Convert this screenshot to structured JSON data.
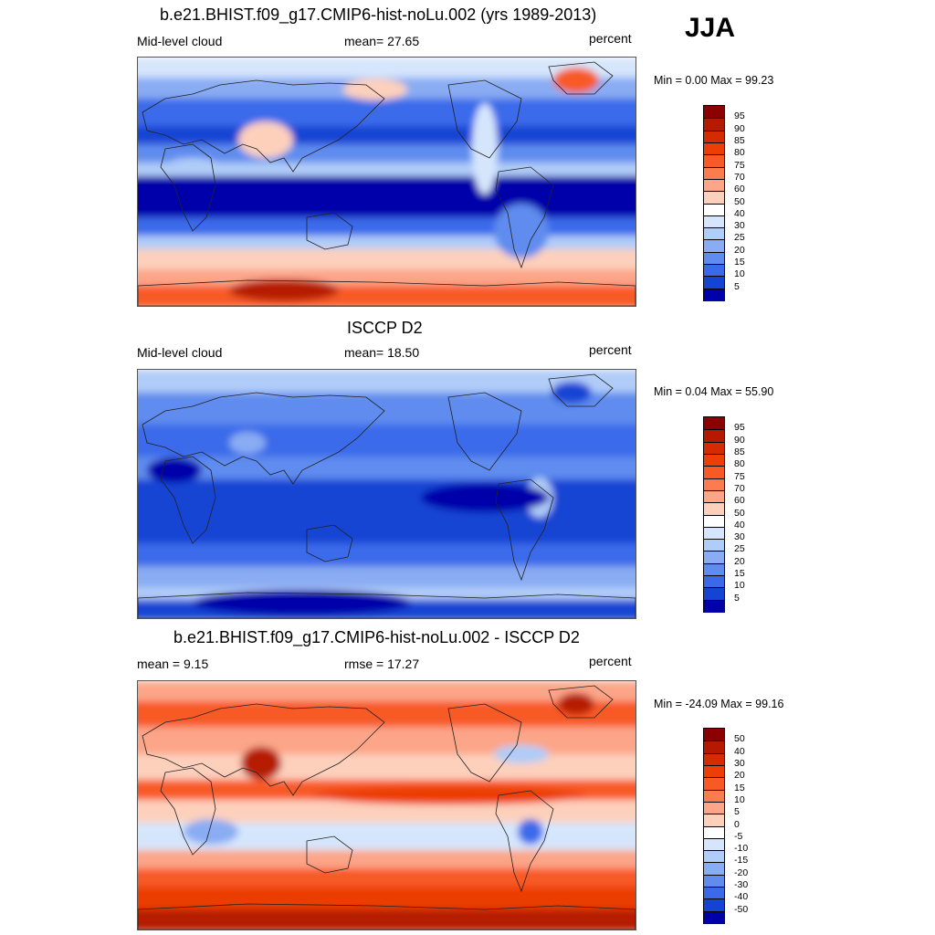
{
  "season": "JJA",
  "panels": [
    {
      "title": "b.e21.BHIST.f09_g17.CMIP6-hist-noLu.002 (yrs 1989-2013)",
      "left_label": "Mid-level cloud",
      "center_label": "mean=  27.65",
      "right_label": "percent",
      "minmax": "Min =   0.00 Max =  99.23",
      "colorbar": {
        "labels": [
          "95",
          "90",
          "85",
          "80",
          "75",
          "70",
          "60",
          "50",
          "40",
          "30",
          "25",
          "20",
          "15",
          "10",
          "5"
        ],
        "colors": [
          "#8b0000",
          "#b51a00",
          "#d42b00",
          "#ec3e06",
          "#f85a26",
          "#fb7c4f",
          "#fca588",
          "#fdd0bc",
          "#ffffff",
          "#d5e6fc",
          "#b0ccf8",
          "#89acf3",
          "#5f8cee",
          "#3a6aea",
          "#1444d4",
          "#0000aa"
        ]
      },
      "style": "model"
    },
    {
      "title": "ISCCP D2",
      "left_label": "Mid-level cloud",
      "center_label": "mean=  18.50",
      "right_label": "percent",
      "minmax": "Min =   0.04 Max =  55.90",
      "colorbar": {
        "labels": [
          "95",
          "90",
          "85",
          "80",
          "75",
          "70",
          "60",
          "50",
          "40",
          "30",
          "25",
          "20",
          "15",
          "10",
          "5"
        ],
        "colors": [
          "#8b0000",
          "#b51a00",
          "#d42b00",
          "#ec3e06",
          "#f85a26",
          "#fb7c4f",
          "#fca588",
          "#fdd0bc",
          "#ffffff",
          "#d5e6fc",
          "#b0ccf8",
          "#89acf3",
          "#5f8cee",
          "#3a6aea",
          "#1444d4",
          "#0000aa"
        ]
      },
      "style": "obs"
    },
    {
      "title": "b.e21.BHIST.f09_g17.CMIP6-hist-noLu.002 - ISCCP D2",
      "left_label": "mean =   9.15",
      "center_label": "rmse =  17.27",
      "right_label": "percent",
      "minmax": "Min = -24.09 Max =  99.16",
      "colorbar": {
        "labels": [
          "50",
          "40",
          "30",
          "20",
          "15",
          "10",
          "5",
          "0",
          "-5",
          "-10",
          "-15",
          "-20",
          "-30",
          "-40",
          "-50"
        ],
        "colors": [
          "#8b0000",
          "#b51a00",
          "#d42b00",
          "#ec3e06",
          "#f85a26",
          "#fb7c4f",
          "#fca588",
          "#fdd0bc",
          "#ffffff",
          "#d5e6fc",
          "#b0ccf8",
          "#89acf3",
          "#5f8cee",
          "#3a6aea",
          "#1444d4",
          "#0000aa"
        ]
      },
      "style": "diff"
    }
  ]
}
